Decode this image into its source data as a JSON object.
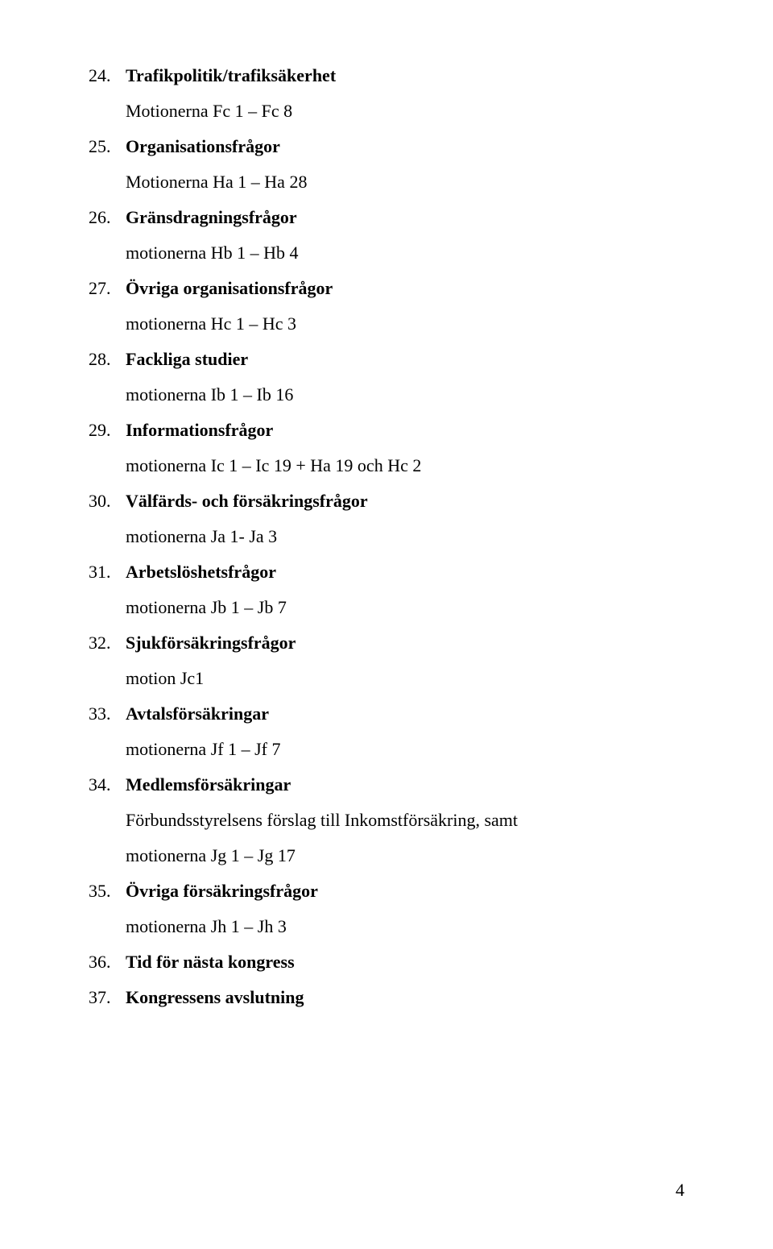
{
  "items": [
    {
      "num": "24.",
      "title": "Trafikpolitik/trafiksäkerhet",
      "subs": [
        "Motionerna Fc 1 – Fc 8"
      ]
    },
    {
      "num": "25.",
      "title": "Organisationsfrågor",
      "subs": [
        "Motionerna Ha 1 – Ha 28"
      ]
    },
    {
      "num": "26.",
      "title": "Gränsdragningsfrågor",
      "subs": [
        "motionerna Hb 1 – Hb 4"
      ]
    },
    {
      "num": "27.",
      "title": "Övriga organisationsfrågor",
      "subs": [
        "motionerna Hc 1 – Hc 3"
      ]
    },
    {
      "num": "28.",
      "title": "Fackliga studier",
      "subs": [
        "motionerna Ib 1 – Ib 16"
      ]
    },
    {
      "num": "29.",
      "title": "Informationsfrågor",
      "subs": [
        "motionerna Ic 1 – Ic 19 + Ha 19 och Hc 2"
      ]
    },
    {
      "num": "30.",
      "title": "Välfärds- och försäkringsfrågor",
      "subs": [
        "motionerna Ja 1- Ja 3"
      ]
    },
    {
      "num": "31.",
      "title": "Arbetslöshetsfrågor",
      "subs": [
        "motionerna Jb 1 – Jb 7"
      ]
    },
    {
      "num": "32.",
      "title": "Sjukförsäkringsfrågor",
      "subs": [
        "motion Jc1"
      ]
    },
    {
      "num": "33.",
      "title": "Avtalsförsäkringar",
      "subs": [
        "motionerna Jf 1 – Jf 7"
      ]
    },
    {
      "num": "34.",
      "title": "Medlemsförsäkringar",
      "subs": [
        "Förbundsstyrelsens förslag till Inkomstförsäkring, samt",
        "motionerna Jg 1 – Jg 17"
      ]
    },
    {
      "num": "35.",
      "title": "Övriga försäkringsfrågor",
      "subs": [
        "motionerna Jh 1 – Jh 3"
      ]
    },
    {
      "num": "36.",
      "title": "Tid för nästa kongress",
      "subs": []
    },
    {
      "num": "37.",
      "title": "Kongressens avslutning",
      "subs": []
    }
  ],
  "pageNumber": "4"
}
